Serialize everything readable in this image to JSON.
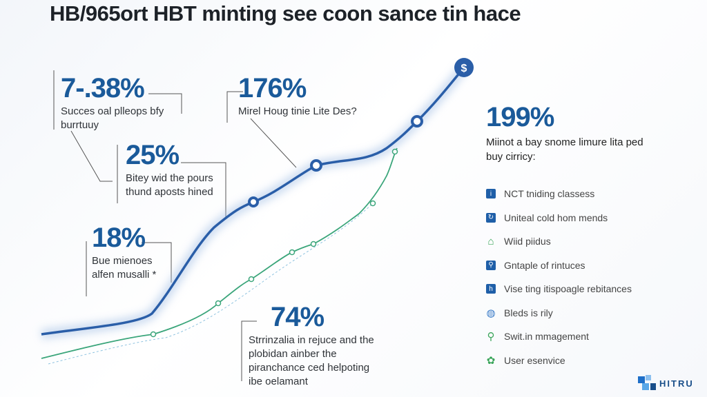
{
  "title": "HB/965ort HBT minting see coon sance tin hace",
  "callouts": [
    {
      "value": "7-.38%",
      "text": "Succes oal plleops bfy burrtuuy"
    },
    {
      "value": "176%",
      "text": "Mirel Houg tinie Lite Des?"
    },
    {
      "value": "25%",
      "text": "Bitey wid the pours thund aposts hined"
    },
    {
      "value": "18%",
      "text": "Bue mienoes alfen musalli *"
    },
    {
      "value": "74%",
      "text": "Strrinzalia in rejuce and the plobidan ainber the piranchance ced helpoting ibe oelamant"
    }
  ],
  "legend": {
    "value": "199%",
    "intro": "Miinot a bay snome limure lita ped buy cirricy:",
    "items": [
      {
        "label": "NCT tniding classess",
        "icon": "info-icon",
        "color": "#1f5fa8"
      },
      {
        "label": "Uniteal cold hom mends",
        "icon": "refresh-icon",
        "color": "#1f5fa8"
      },
      {
        "label": "Wiid piidus",
        "icon": "house-icon",
        "color": "#3aa55a"
      },
      {
        "label": "Gntaple of rintuces",
        "icon": "person-icon",
        "color": "#1f5fa8"
      },
      {
        "label": "Vise ting itispoagle rebitances",
        "icon": "h-icon",
        "color": "#1f5fa8"
      },
      {
        "label": "Bleds is rily",
        "icon": "globe-icon",
        "color": "#3a7cc8"
      },
      {
        "label": "Swit.in mmagement",
        "icon": "location-pin-icon",
        "color": "#3aa55a"
      },
      {
        "label": "User esenvice",
        "icon": "gear-icon",
        "color": "#3aa55a"
      }
    ]
  },
  "end_marker": "$",
  "logo": "HITRU",
  "colors": {
    "primary": "#2a5ea8",
    "secondary": "#3aa57a",
    "accent": "#1a5a9a"
  }
}
